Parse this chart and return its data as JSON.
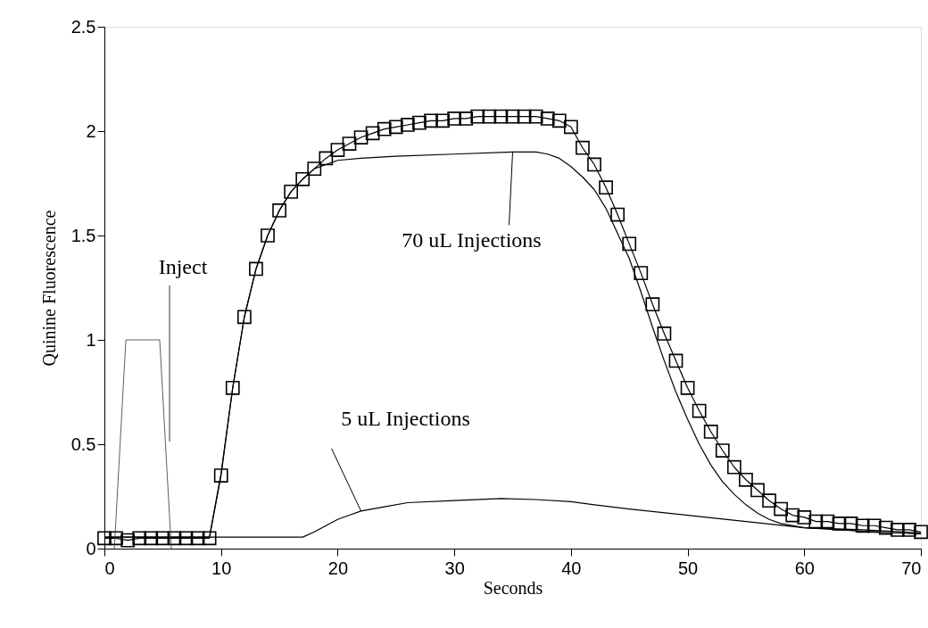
{
  "chart_data": {
    "type": "line",
    "xlabel": "Seconds",
    "ylabel": "Quinine Fluorescence",
    "xlim": [
      0,
      70
    ],
    "ylim": [
      0,
      2.5
    ],
    "xticks": [
      0,
      10,
      20,
      30,
      40,
      50,
      60,
      70
    ],
    "yticks": [
      0,
      0.5,
      1,
      1.5,
      2,
      2.5
    ],
    "grid": false,
    "series": [
      {
        "color": "#000000",
        "marker": "square",
        "x": [
          0,
          1,
          2,
          3,
          4,
          5,
          6,
          7,
          8,
          9,
          10,
          11,
          12,
          13,
          14,
          15,
          16,
          17,
          18,
          19,
          20,
          21,
          22,
          23,
          24,
          25,
          26,
          27,
          28,
          29,
          30,
          31,
          32,
          33,
          34,
          35,
          36,
          37,
          38,
          39,
          40,
          41,
          42,
          43,
          44,
          45,
          46,
          47,
          48,
          49,
          50,
          51,
          52,
          53,
          54,
          55,
          56,
          57,
          58,
          59,
          60,
          61,
          62,
          63,
          64,
          65,
          66,
          67,
          68,
          69,
          70
        ],
        "values": [
          0.05,
          0.05,
          0.04,
          0.05,
          0.05,
          0.05,
          0.05,
          0.05,
          0.05,
          0.05,
          0.35,
          0.77,
          1.11,
          1.34,
          1.5,
          1.62,
          1.71,
          1.77,
          1.82,
          1.87,
          1.91,
          1.94,
          1.97,
          1.99,
          2.01,
          2.02,
          2.03,
          2.04,
          2.05,
          2.05,
          2.06,
          2.06,
          2.07,
          2.07,
          2.07,
          2.07,
          2.07,
          2.07,
          2.06,
          2.05,
          2.02,
          1.92,
          1.84,
          1.73,
          1.6,
          1.46,
          1.32,
          1.17,
          1.03,
          0.9,
          0.77,
          0.66,
          0.56,
          0.47,
          0.39,
          0.33,
          0.28,
          0.23,
          0.19,
          0.16,
          0.15,
          0.13,
          0.13,
          0.12,
          0.12,
          0.11,
          0.11,
          0.1,
          0.09,
          0.09,
          0.08
        ]
      },
      {
        "color": "#000000",
        "marker": "none",
        "x": [
          0,
          9,
          10,
          11,
          12,
          13,
          14,
          15,
          16,
          17,
          18,
          20,
          22,
          25,
          30,
          35,
          37,
          38,
          39,
          40,
          41,
          42,
          43,
          44,
          45,
          46,
          47,
          48,
          49,
          50,
          51,
          52,
          53,
          54,
          55,
          56,
          57,
          58,
          60,
          63,
          66,
          70
        ],
        "values": [
          0.055,
          0.055,
          0.36,
          0.77,
          1.11,
          1.34,
          1.5,
          1.62,
          1.71,
          1.77,
          1.82,
          1.86,
          1.87,
          1.88,
          1.89,
          1.9,
          1.9,
          1.89,
          1.87,
          1.83,
          1.78,
          1.72,
          1.63,
          1.51,
          1.39,
          1.23,
          1.06,
          0.9,
          0.75,
          0.62,
          0.5,
          0.4,
          0.32,
          0.26,
          0.21,
          0.17,
          0.14,
          0.12,
          0.1,
          0.09,
          0.08,
          0.07
        ]
      },
      {
        "color": "#000000",
        "marker": "none",
        "x": [
          0,
          17,
          18,
          19,
          20,
          21,
          22,
          24,
          26,
          30,
          34,
          37,
          40,
          42,
          45,
          50,
          55,
          60,
          65,
          70
        ],
        "values": [
          0.055,
          0.055,
          0.08,
          0.11,
          0.14,
          0.16,
          0.18,
          0.2,
          0.22,
          0.23,
          0.24,
          0.235,
          0.225,
          0.21,
          0.19,
          0.16,
          0.13,
          0.1,
          0.09,
          0.075
        ]
      },
      {
        "color": "#333333",
        "marker": "none",
        "x": [
          0.85,
          1.84,
          4.74,
          5.74
        ],
        "values": [
          0,
          1,
          1,
          0
        ]
      }
    ],
    "annotations": [
      "Inject",
      {
        "text": "70 uL Injections",
        "x": 35,
        "y": 1.9
      },
      {
        "text": "5 uL Injections",
        "x": 22,
        "y": 0.18
      }
    ]
  }
}
